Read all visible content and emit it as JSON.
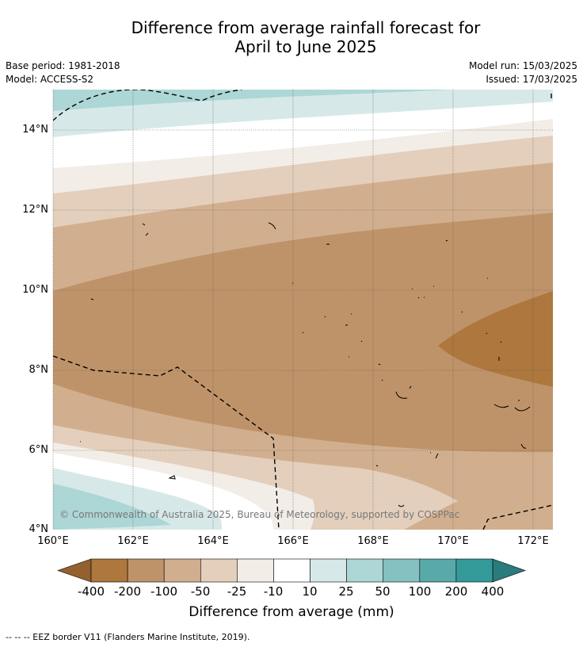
{
  "title_line1": "Difference from average rainfall forecast for",
  "title_line2": "April to June 2025",
  "base_period": "Base period: 1981-2018",
  "model": "Model: ACCESS-S2",
  "model_run": "Model run: 15/03/2025",
  "issued": "Issued: 17/03/2025",
  "copyright": "© Commonwealth of Australia 2025, Bureau of Meteorology, supported by COSPPac",
  "lon_labels": [
    "160°E",
    "162°E",
    "164°E",
    "166°E",
    "168°E",
    "170°E",
    "172°E"
  ],
  "lat_labels": [
    "14°N",
    "12°N",
    "10°N",
    "8°N",
    "6°N",
    "4°N"
  ],
  "colorbar": {
    "labels": [
      "-400",
      "-200",
      "-100",
      "-50",
      "-25",
      "-10",
      "10",
      "25",
      "50",
      "100",
      "200",
      "400"
    ],
    "colors": [
      "#93612f",
      "#ad773d",
      "#bf9369",
      "#d1af8e",
      "#e3cfbc",
      "#f2ede7",
      "#ffffff",
      "#d6e9e8",
      "#add6d6",
      "#85c1c1",
      "#58aaa9",
      "#339999",
      "#2a7b7b"
    ],
    "title": "Difference from average (mm)"
  },
  "footer": "--  --  -- EEZ border V11 (Flanders Marine Institute, 2019)."
}
